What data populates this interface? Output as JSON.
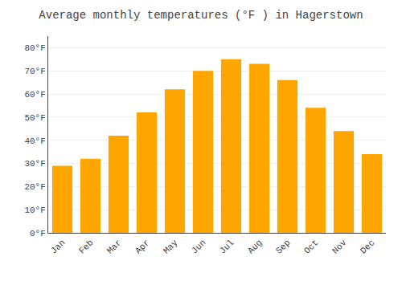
{
  "chart_data": {
    "type": "bar",
    "title": "Average monthly temperatures (°F ) in Hagerstown",
    "categories": [
      "Jan",
      "Feb",
      "Mar",
      "Apr",
      "May",
      "Jun",
      "Jul",
      "Aug",
      "Sep",
      "Oct",
      "Nov",
      "Dec"
    ],
    "values": [
      29,
      32,
      42,
      52,
      62,
      70,
      75,
      73,
      66,
      54,
      44,
      34
    ],
    "color": "#FFA500",
    "ylim": [
      0,
      85
    ],
    "yticks": [
      {
        "value": 0,
        "label": "0°F"
      },
      {
        "value": 10,
        "label": "10°F"
      },
      {
        "value": 20,
        "label": "20°F"
      },
      {
        "value": 30,
        "label": "30°F"
      },
      {
        "value": 40,
        "label": "40°F"
      },
      {
        "value": 50,
        "label": "50°F"
      },
      {
        "value": 60,
        "label": "60°F"
      },
      {
        "value": 70,
        "label": "70°F"
      },
      {
        "value": 80,
        "label": "80°F"
      }
    ],
    "grid": true
  }
}
